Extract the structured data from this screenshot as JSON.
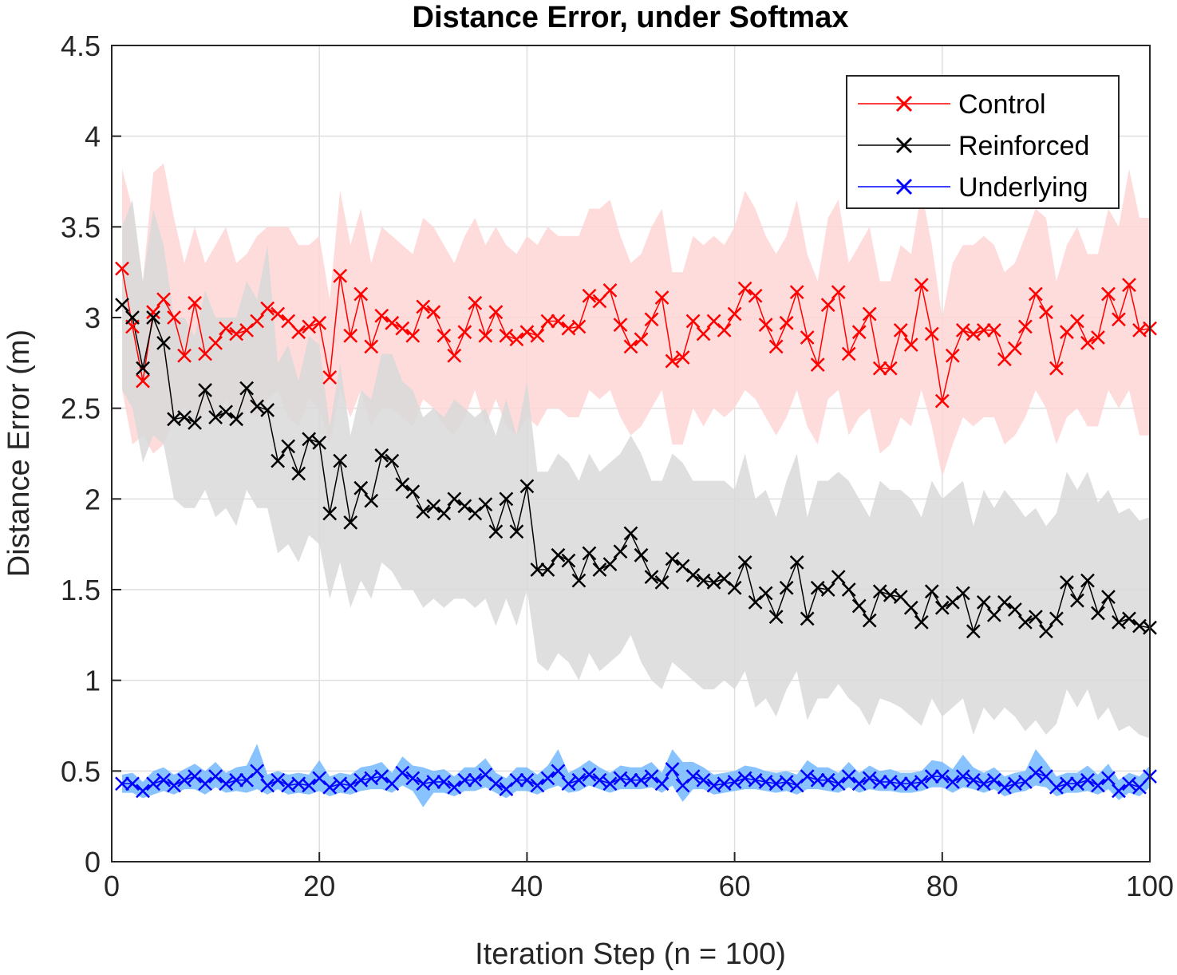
{
  "chart_data": {
    "type": "line",
    "title": "Distance Error, under Softmax",
    "xlabel": "Iteration Step (n = 100)",
    "ylabel": "Distance Error (m)",
    "xlim": [
      0,
      100
    ],
    "ylim": [
      0,
      4.5
    ],
    "xticks": [
      0,
      20,
      40,
      60,
      80,
      100
    ],
    "yticks": [
      0,
      0.5,
      1,
      1.5,
      2,
      2.5,
      3,
      3.5,
      4,
      4.5
    ],
    "xtick_labels": [
      "0",
      "20",
      "40",
      "60",
      "80",
      "100"
    ],
    "ytick_labels": [
      "0",
      "0.5",
      "1",
      "1.5",
      "2",
      "2.5",
      "3",
      "3.5",
      "4",
      "4.5"
    ],
    "grid": true,
    "legend_position": "top-right",
    "x": [
      1,
      2,
      3,
      4,
      5,
      6,
      7,
      8,
      9,
      10,
      11,
      12,
      13,
      14,
      15,
      16,
      17,
      18,
      19,
      20,
      21,
      22,
      23,
      24,
      25,
      26,
      27,
      28,
      29,
      30,
      31,
      32,
      33,
      34,
      35,
      36,
      37,
      38,
      39,
      40,
      41,
      42,
      43,
      44,
      45,
      46,
      47,
      48,
      49,
      50,
      51,
      52,
      53,
      54,
      55,
      56,
      57,
      58,
      59,
      60,
      61,
      62,
      63,
      64,
      65,
      66,
      67,
      68,
      69,
      70,
      71,
      72,
      73,
      74,
      75,
      76,
      77,
      78,
      79,
      80,
      81,
      82,
      83,
      84,
      85,
      86,
      87,
      88,
      89,
      90,
      91,
      92,
      93,
      94,
      95,
      96,
      97,
      98,
      99,
      100
    ],
    "series": [
      {
        "name": "Control",
        "color": "#ff0000",
        "band_color": "#ffd6d6",
        "values": [
          3.27,
          2.95,
          2.65,
          3.03,
          3.1,
          3.0,
          2.79,
          3.08,
          2.8,
          2.86,
          2.94,
          2.91,
          2.93,
          2.98,
          3.05,
          3.02,
          2.98,
          2.92,
          2.95,
          2.97,
          2.67,
          3.23,
          2.9,
          3.13,
          2.84,
          3.01,
          2.97,
          2.94,
          2.9,
          3.06,
          3.03,
          2.9,
          2.79,
          2.92,
          3.08,
          2.9,
          3.03,
          2.9,
          2.88,
          2.92,
          2.9,
          2.98,
          2.98,
          2.94,
          2.95,
          3.12,
          3.09,
          3.15,
          2.96,
          2.84,
          2.88,
          2.99,
          3.11,
          2.76,
          2.78,
          2.98,
          2.91,
          2.98,
          2.93,
          3.02,
          3.16,
          3.12,
          2.96,
          2.84,
          2.97,
          3.14,
          2.89,
          2.74,
          3.07,
          3.14,
          2.8,
          2.92,
          3.02,
          2.72,
          2.72,
          2.93,
          2.85,
          3.18,
          2.91,
          2.54,
          2.79,
          2.93,
          2.91,
          2.93,
          2.93,
          2.77,
          2.83,
          2.95,
          3.13,
          3.03,
          2.72,
          2.92,
          2.98,
          2.86,
          2.89,
          3.13,
          2.99,
          3.18,
          2.93,
          2.94
        ],
        "lower": [
          2.6,
          2.3,
          2.35,
          2.25,
          2.3,
          2.45,
          2.5,
          2.4,
          2.5,
          2.45,
          2.55,
          2.4,
          2.5,
          2.45,
          2.55,
          2.6,
          2.45,
          2.4,
          2.55,
          2.5,
          2.3,
          2.6,
          2.45,
          2.6,
          2.4,
          2.5,
          2.5,
          2.45,
          2.4,
          2.55,
          2.5,
          2.4,
          2.35,
          2.45,
          2.6,
          2.4,
          2.55,
          2.4,
          2.35,
          2.45,
          2.4,
          2.5,
          2.5,
          2.45,
          2.45,
          2.6,
          2.55,
          2.6,
          2.45,
          2.35,
          2.4,
          2.5,
          2.6,
          2.3,
          2.3,
          2.5,
          2.4,
          2.5,
          2.45,
          2.5,
          2.6,
          2.55,
          2.45,
          2.35,
          2.45,
          2.6,
          2.4,
          2.3,
          2.55,
          2.6,
          2.35,
          2.45,
          2.5,
          2.25,
          2.3,
          2.45,
          2.4,
          2.6,
          2.4,
          2.12,
          2.3,
          2.45,
          2.4,
          2.45,
          2.45,
          2.3,
          2.35,
          2.45,
          2.6,
          2.5,
          2.3,
          2.45,
          2.5,
          2.4,
          2.4,
          2.6,
          2.5,
          2.6,
          2.35,
          2.35
        ],
        "upper": [
          3.82,
          3.6,
          3.2,
          3.8,
          3.85,
          3.55,
          3.3,
          3.5,
          3.3,
          3.4,
          3.5,
          3.3,
          3.35,
          3.45,
          3.5,
          3.5,
          3.5,
          3.4,
          3.4,
          3.45,
          3.1,
          3.7,
          3.4,
          3.6,
          3.3,
          3.5,
          3.45,
          3.4,
          3.35,
          3.55,
          3.5,
          3.4,
          3.3,
          3.45,
          3.55,
          3.4,
          3.5,
          3.4,
          3.35,
          3.45,
          3.4,
          3.5,
          3.45,
          3.45,
          3.45,
          3.6,
          3.6,
          3.65,
          3.45,
          3.3,
          3.35,
          3.5,
          3.6,
          3.25,
          3.25,
          3.45,
          3.4,
          3.45,
          3.4,
          3.5,
          3.7,
          3.6,
          3.45,
          3.35,
          3.45,
          3.65,
          3.35,
          3.2,
          3.55,
          3.65,
          3.3,
          3.4,
          3.5,
          3.2,
          3.2,
          3.4,
          3.35,
          3.7,
          3.4,
          3.0,
          3.3,
          3.4,
          3.4,
          3.45,
          3.4,
          3.25,
          3.3,
          3.45,
          3.6,
          3.55,
          3.2,
          3.4,
          3.5,
          3.35,
          3.35,
          3.6,
          3.5,
          3.82,
          3.55,
          3.55
        ]
      },
      {
        "name": "Reinforced",
        "color": "#000000",
        "band_color": "#d9d9d9",
        "values": [
          3.07,
          3.0,
          2.72,
          3.0,
          2.86,
          2.44,
          2.45,
          2.42,
          2.6,
          2.45,
          2.48,
          2.44,
          2.61,
          2.51,
          2.49,
          2.21,
          2.29,
          2.14,
          2.33,
          2.31,
          1.92,
          2.21,
          1.87,
          2.06,
          1.99,
          2.24,
          2.21,
          2.08,
          2.04,
          1.93,
          1.96,
          1.92,
          2.0,
          1.96,
          1.92,
          1.97,
          1.82,
          2.0,
          1.82,
          2.07,
          1.61,
          1.61,
          1.69,
          1.66,
          1.55,
          1.7,
          1.61,
          1.64,
          1.71,
          1.81,
          1.69,
          1.57,
          1.54,
          1.67,
          1.63,
          1.58,
          1.55,
          1.54,
          1.56,
          1.51,
          1.65,
          1.43,
          1.48,
          1.35,
          1.51,
          1.65,
          1.34,
          1.51,
          1.5,
          1.57,
          1.5,
          1.41,
          1.33,
          1.49,
          1.47,
          1.46,
          1.4,
          1.32,
          1.49,
          1.4,
          1.43,
          1.48,
          1.27,
          1.43,
          1.36,
          1.43,
          1.39,
          1.32,
          1.35,
          1.27,
          1.34,
          1.54,
          1.44,
          1.55,
          1.37,
          1.46,
          1.32,
          1.34,
          1.3,
          1.29
        ],
        "lower": [
          2.6,
          2.5,
          2.2,
          2.35,
          2.3,
          2.0,
          1.95,
          1.95,
          2.05,
          1.9,
          1.95,
          1.85,
          2.05,
          1.95,
          1.95,
          1.7,
          1.75,
          1.65,
          1.8,
          1.75,
          1.45,
          1.65,
          1.4,
          1.55,
          1.45,
          1.65,
          1.6,
          1.5,
          1.5,
          1.4,
          1.45,
          1.4,
          1.45,
          1.45,
          1.4,
          1.45,
          1.3,
          1.45,
          1.3,
          1.5,
          1.1,
          1.05,
          1.15,
          1.1,
          1.0,
          1.15,
          1.05,
          1.1,
          1.15,
          1.25,
          1.1,
          1.0,
          0.95,
          1.1,
          1.05,
          1.0,
          0.95,
          0.95,
          1.0,
          0.95,
          1.05,
          0.85,
          0.9,
          0.8,
          0.95,
          1.05,
          0.78,
          0.9,
          0.9,
          0.98,
          0.9,
          0.85,
          0.75,
          0.9,
          0.88,
          0.85,
          0.8,
          0.75,
          0.9,
          0.8,
          0.85,
          0.9,
          0.7,
          0.85,
          0.78,
          0.85,
          0.8,
          0.72,
          0.78,
          0.7,
          0.76,
          0.95,
          0.85,
          0.95,
          0.78,
          0.85,
          0.72,
          0.75,
          0.7,
          0.68
        ],
        "upper": [
          3.5,
          3.65,
          3.2,
          3.6,
          3.4,
          3.0,
          3.0,
          2.9,
          3.15,
          3.0,
          3.0,
          3.0,
          3.2,
          3.1,
          3.4,
          2.75,
          2.85,
          2.65,
          2.9,
          2.85,
          2.4,
          2.75,
          2.35,
          2.6,
          2.55,
          2.8,
          2.8,
          2.65,
          2.6,
          2.45,
          2.5,
          2.45,
          2.55,
          2.5,
          2.45,
          2.5,
          2.35,
          2.55,
          2.35,
          2.65,
          2.15,
          2.15,
          2.25,
          2.2,
          2.1,
          2.25,
          2.15,
          2.2,
          2.25,
          2.35,
          2.25,
          2.1,
          2.1,
          2.25,
          2.2,
          2.1,
          2.1,
          2.1,
          2.1,
          2.05,
          2.25,
          2.0,
          2.05,
          1.9,
          2.1,
          2.25,
          1.9,
          2.1,
          2.1,
          2.15,
          2.1,
          2.0,
          1.9,
          2.1,
          2.05,
          2.05,
          2.0,
          1.9,
          2.1,
          2.0,
          2.05,
          2.1,
          1.85,
          2.05,
          1.95,
          2.05,
          1.98,
          1.9,
          1.95,
          1.85,
          1.92,
          2.15,
          2.05,
          2.15,
          1.98,
          2.05,
          1.92,
          1.95,
          1.88,
          1.9
        ]
      },
      {
        "name": "Underlying",
        "color": "#0000ff",
        "band_color": "#73b8ff",
        "values": [
          0.43,
          0.43,
          0.39,
          0.43,
          0.45,
          0.42,
          0.45,
          0.47,
          0.43,
          0.47,
          0.43,
          0.45,
          0.45,
          0.5,
          0.42,
          0.45,
          0.42,
          0.43,
          0.42,
          0.46,
          0.41,
          0.43,
          0.42,
          0.45,
          0.46,
          0.47,
          0.43,
          0.49,
          0.46,
          0.43,
          0.44,
          0.44,
          0.41,
          0.45,
          0.45,
          0.48,
          0.43,
          0.4,
          0.45,
          0.45,
          0.42,
          0.46,
          0.5,
          0.43,
          0.45,
          0.48,
          0.45,
          0.43,
          0.46,
          0.45,
          0.45,
          0.47,
          0.43,
          0.51,
          0.42,
          0.47,
          0.45,
          0.42,
          0.43,
          0.44,
          0.46,
          0.45,
          0.44,
          0.43,
          0.44,
          0.42,
          0.47,
          0.45,
          0.45,
          0.43,
          0.47,
          0.43,
          0.46,
          0.44,
          0.44,
          0.43,
          0.43,
          0.44,
          0.47,
          0.47,
          0.44,
          0.47,
          0.45,
          0.43,
          0.45,
          0.41,
          0.43,
          0.44,
          0.49,
          0.47,
          0.41,
          0.43,
          0.43,
          0.45,
          0.42,
          0.46,
          0.39,
          0.43,
          0.41,
          0.47
        ],
        "lower": [
          0.38,
          0.38,
          0.35,
          0.37,
          0.39,
          0.37,
          0.4,
          0.4,
          0.37,
          0.41,
          0.38,
          0.39,
          0.38,
          0.4,
          0.37,
          0.4,
          0.37,
          0.38,
          0.37,
          0.39,
          0.36,
          0.38,
          0.37,
          0.39,
          0.4,
          0.4,
          0.38,
          0.42,
          0.39,
          0.3,
          0.38,
          0.38,
          0.36,
          0.39,
          0.39,
          0.41,
          0.38,
          0.35,
          0.39,
          0.39,
          0.37,
          0.4,
          0.42,
          0.38,
          0.39,
          0.42,
          0.4,
          0.38,
          0.4,
          0.4,
          0.4,
          0.41,
          0.38,
          0.42,
          0.33,
          0.4,
          0.4,
          0.37,
          0.38,
          0.39,
          0.4,
          0.4,
          0.39,
          0.38,
          0.39,
          0.37,
          0.4,
          0.4,
          0.39,
          0.38,
          0.41,
          0.38,
          0.4,
          0.39,
          0.39,
          0.38,
          0.38,
          0.39,
          0.41,
          0.41,
          0.38,
          0.41,
          0.4,
          0.38,
          0.4,
          0.36,
          0.38,
          0.39,
          0.42,
          0.41,
          0.36,
          0.38,
          0.38,
          0.39,
          0.37,
          0.4,
          0.34,
          0.38,
          0.36,
          0.41
        ],
        "upper": [
          0.48,
          0.49,
          0.44,
          0.5,
          0.52,
          0.48,
          0.51,
          0.54,
          0.5,
          0.55,
          0.49,
          0.52,
          0.53,
          0.65,
          0.48,
          0.5,
          0.48,
          0.49,
          0.48,
          0.56,
          0.47,
          0.49,
          0.48,
          0.52,
          0.53,
          0.55,
          0.49,
          0.58,
          0.53,
          0.52,
          0.5,
          0.51,
          0.47,
          0.52,
          0.52,
          0.57,
          0.49,
          0.46,
          0.52,
          0.52,
          0.48,
          0.53,
          0.62,
          0.49,
          0.52,
          0.56,
          0.52,
          0.49,
          0.53,
          0.52,
          0.52,
          0.55,
          0.49,
          0.62,
          0.55,
          0.55,
          0.52,
          0.48,
          0.49,
          0.5,
          0.53,
          0.52,
          0.5,
          0.49,
          0.5,
          0.48,
          0.56,
          0.52,
          0.52,
          0.49,
          0.55,
          0.49,
          0.53,
          0.5,
          0.51,
          0.49,
          0.49,
          0.5,
          0.56,
          0.55,
          0.51,
          0.59,
          0.52,
          0.49,
          0.52,
          0.47,
          0.49,
          0.5,
          0.62,
          0.55,
          0.47,
          0.49,
          0.49,
          0.53,
          0.48,
          0.54,
          0.45,
          0.49,
          0.47,
          0.53
        ]
      }
    ]
  }
}
